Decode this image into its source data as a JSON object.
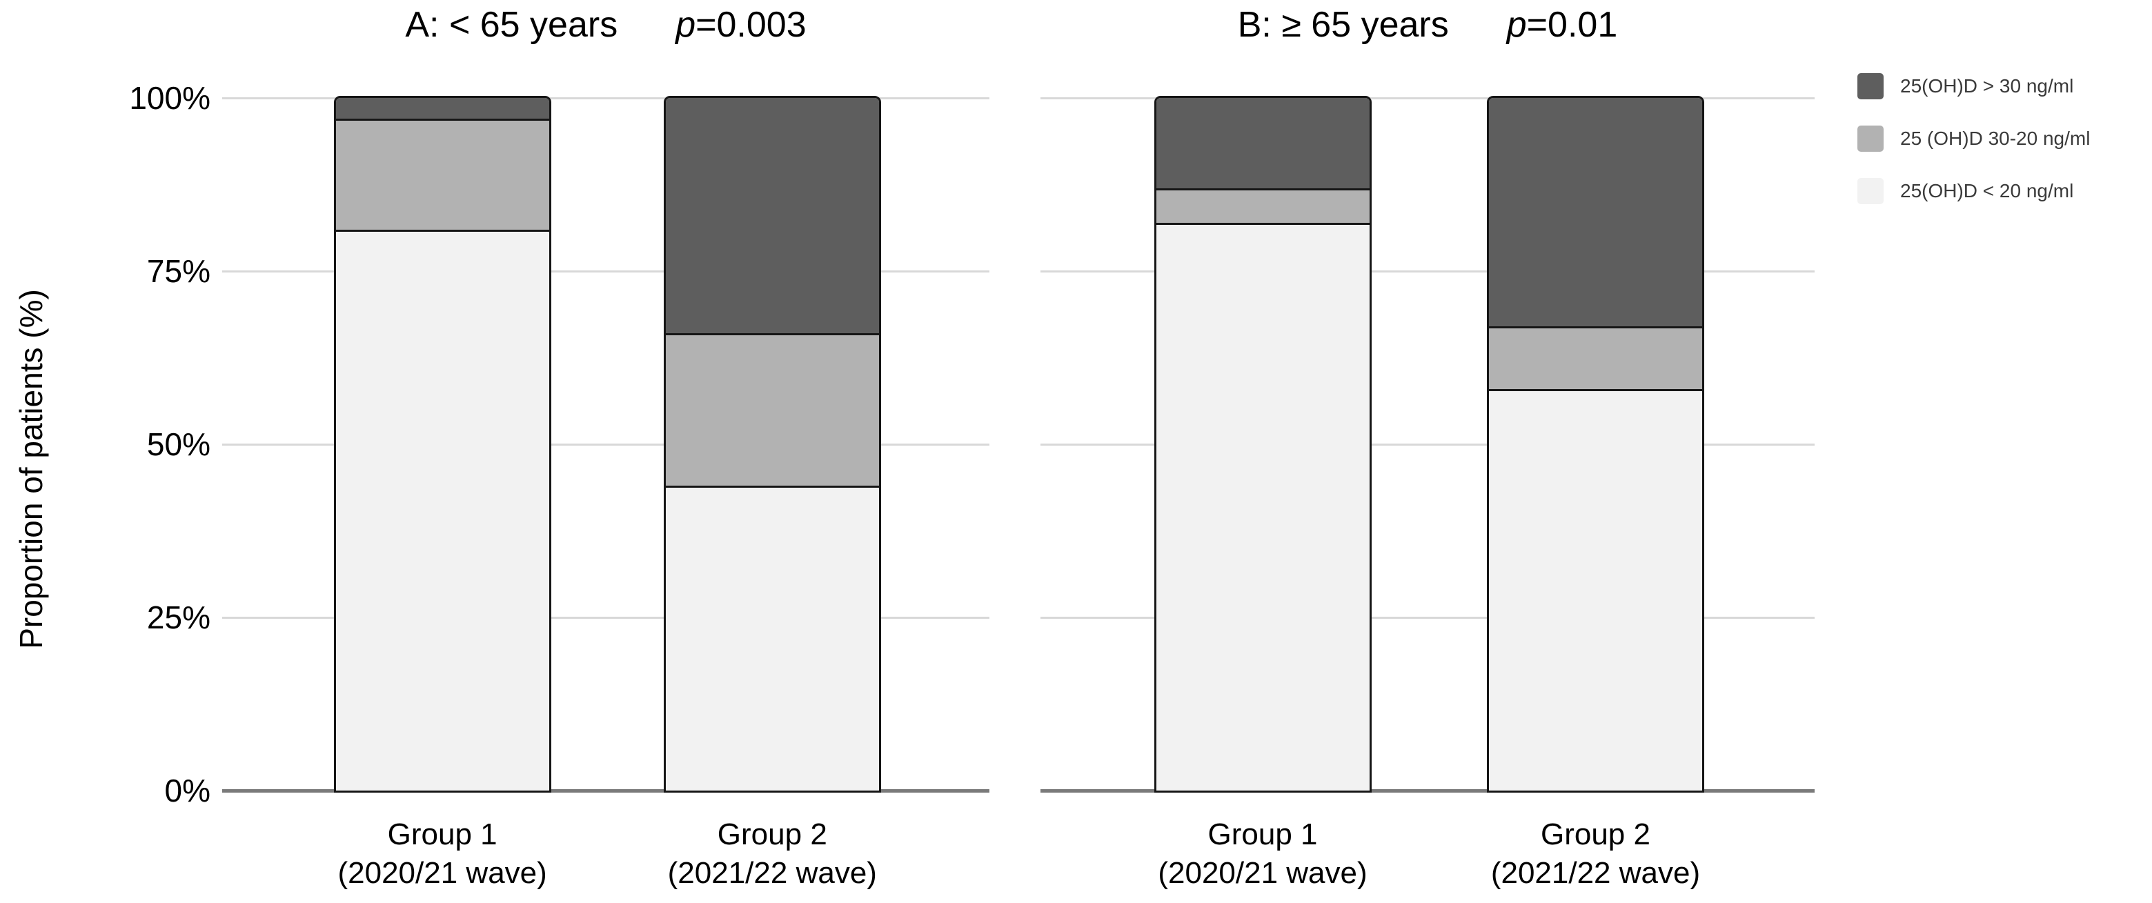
{
  "y_axis": {
    "title": "Proportion of patients (%)",
    "ticks": [
      {
        "label": "100%",
        "value": 100
      },
      {
        "label": "75%",
        "value": 75
      },
      {
        "label": "50%",
        "value": 50
      },
      {
        "label": "25%",
        "value": 25
      },
      {
        "label": "0%",
        "value": 0
      }
    ]
  },
  "colors": {
    "dark": "#5e5e5e",
    "medium": "#b2b2b2",
    "light": "#f2f2f2",
    "bar_outline": "#161616",
    "gridline": "#d8d8d8",
    "baseline": "#7a7a7a"
  },
  "legend": {
    "items": [
      {
        "label": "25(OH)D > 30 ng/ml",
        "color_key": "dark"
      },
      {
        "label": "25 (OH)D 30-20 ng/ml",
        "color_key": "medium"
      },
      {
        "label": "25(OH)D < 20 ng/ml",
        "color_key": "light"
      }
    ]
  },
  "chart_data": [
    {
      "type": "bar",
      "stacked": true,
      "panel": "A",
      "title": "A: < 65 years",
      "p_label": {
        "symbol": "p",
        "rest": "=0.003"
      },
      "categories": [
        [
          "Group 1",
          "(2020/21 wave)"
        ],
        [
          "Group 2",
          "(2021/22 wave)"
        ]
      ],
      "series": [
        {
          "name": "25(OH)D > 30 ng/ml",
          "color_key": "dark",
          "values": [
            3,
            34
          ]
        },
        {
          "name": "25 (OH)D 30-20 ng/ml",
          "color_key": "medium",
          "values": [
            16,
            22
          ]
        },
        {
          "name": "25(OH)D < 20 ng/ml",
          "color_key": "light",
          "values": [
            81,
            44
          ]
        }
      ],
      "ylabel": "Proportion of patients (%)",
      "ylim": [
        0,
        100
      ],
      "grid": true,
      "legend_position": "top-right"
    },
    {
      "type": "bar",
      "stacked": true,
      "panel": "B",
      "title": "B: ≥ 65 years",
      "p_label": {
        "symbol": "p",
        "rest": "=0.01"
      },
      "categories": [
        [
          "Group 1",
          "(2020/21 wave)"
        ],
        [
          "Group 2",
          "(2021/22 wave)"
        ]
      ],
      "series": [
        {
          "name": "25(OH)D > 30 ng/ml",
          "color_key": "dark",
          "values": [
            13,
            33
          ]
        },
        {
          "name": "25 (OH)D 30-20 ng/ml",
          "color_key": "medium",
          "values": [
            5,
            9
          ]
        },
        {
          "name": "25(OH)D < 20 ng/ml",
          "color_key": "light",
          "values": [
            82,
            58
          ]
        }
      ],
      "ylabel": "Proportion of patients (%)",
      "ylim": [
        0,
        100
      ],
      "grid": true,
      "legend_position": "top-right"
    }
  ]
}
